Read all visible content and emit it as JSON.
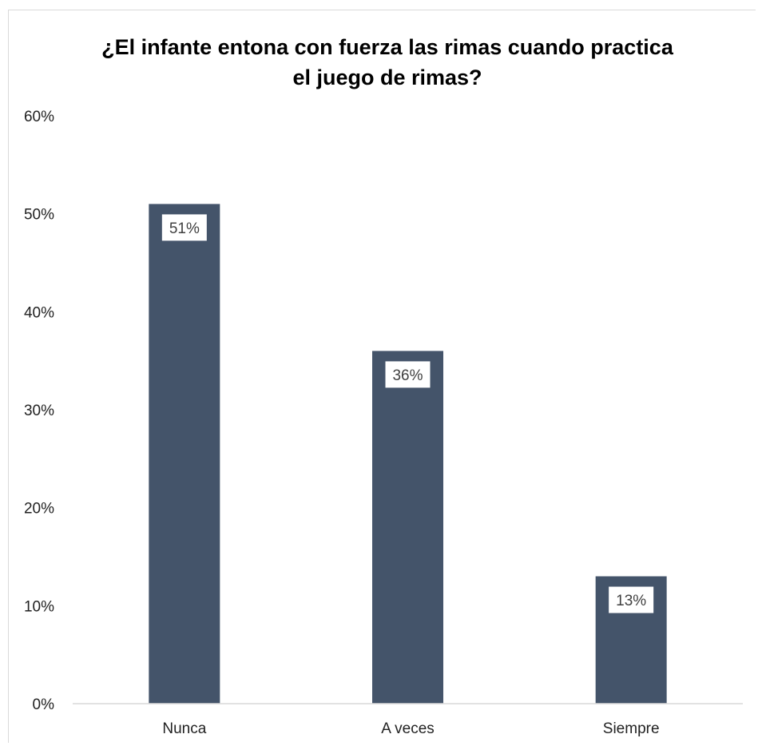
{
  "chart_data": {
    "type": "bar",
    "title_lines": [
      "¿El infante entona con fuerza las rimas cuando practica",
      "el juego de rimas?"
    ],
    "categories": [
      "Nunca",
      "A veces",
      "Siempre"
    ],
    "values": [
      51,
      36,
      13
    ],
    "data_labels": [
      "51%",
      "36%",
      "13%"
    ],
    "ylim": [
      0,
      60
    ],
    "yticks": [
      0,
      10,
      20,
      30,
      40,
      50,
      60
    ],
    "ytick_labels": [
      "0%",
      "10%",
      "20%",
      "30%",
      "40%",
      "50%",
      "60%"
    ],
    "bar_color": "#44546a",
    "grid": false,
    "legend": "none"
  }
}
